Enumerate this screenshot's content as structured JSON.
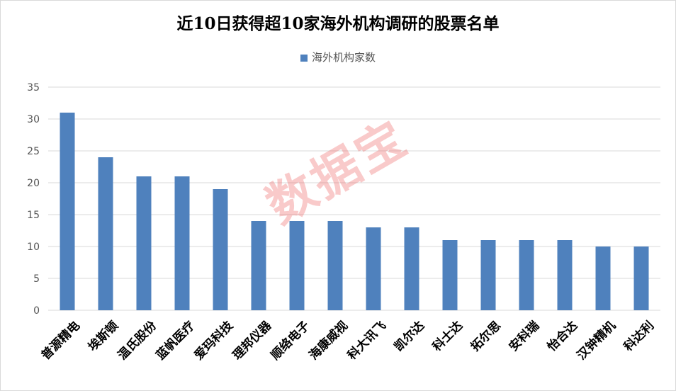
{
  "chart_data": {
    "type": "bar",
    "title": "近10日获得超10家海外机构调研的股票名单",
    "categories": [
      "普源精电",
      "埃斯顿",
      "温氏股份",
      "蓝帆医疗",
      "爱玛科技",
      "理邦仪器",
      "顺络电子",
      "海康威视",
      "科大讯飞",
      "凯尔达",
      "科士达",
      "拓尔思",
      "安科瑞",
      "怡合达",
      "汉钟精机",
      "科达利"
    ],
    "series": [
      {
        "name": "海外机构家数",
        "values": [
          31,
          24,
          21,
          21,
          19,
          14,
          14,
          14,
          13,
          13,
          11,
          11,
          11,
          11,
          10,
          10
        ]
      }
    ],
    "ylim": [
      0,
      35
    ],
    "yticks": [
      0,
      5,
      10,
      15,
      20,
      25,
      30,
      35
    ],
    "grid": true,
    "legend_position": "top",
    "bar_color": "#4f81bd"
  },
  "watermark": "数据宝"
}
